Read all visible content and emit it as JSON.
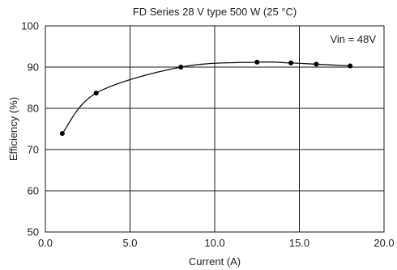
{
  "chart_data": {
    "type": "line",
    "title": "FD Series 28 V type 500 W (25 °C)",
    "xlabel": "Current (A)",
    "ylabel": "Efficiency (%)",
    "xlim": [
      0,
      20
    ],
    "ylim": [
      50,
      100
    ],
    "xticks": [
      "0.0",
      "5.0",
      "10.0",
      "15.0",
      "20.0"
    ],
    "yticks": [
      "50",
      "60",
      "70",
      "80",
      "90",
      "100"
    ],
    "xtick_values": [
      0,
      5,
      10,
      15,
      20
    ],
    "ytick_values": [
      50,
      60,
      70,
      80,
      90,
      100
    ],
    "grid": true,
    "annotation": "Vin = 48V",
    "annotation_position": "top-right",
    "series": [
      {
        "x": [
          1.0,
          3.0,
          8.0,
          12.5,
          14.5,
          16.0,
          18.0
        ],
        "y": [
          73.9,
          83.7,
          90.0,
          91.2,
          91.0,
          90.7,
          90.3
        ]
      }
    ]
  }
}
